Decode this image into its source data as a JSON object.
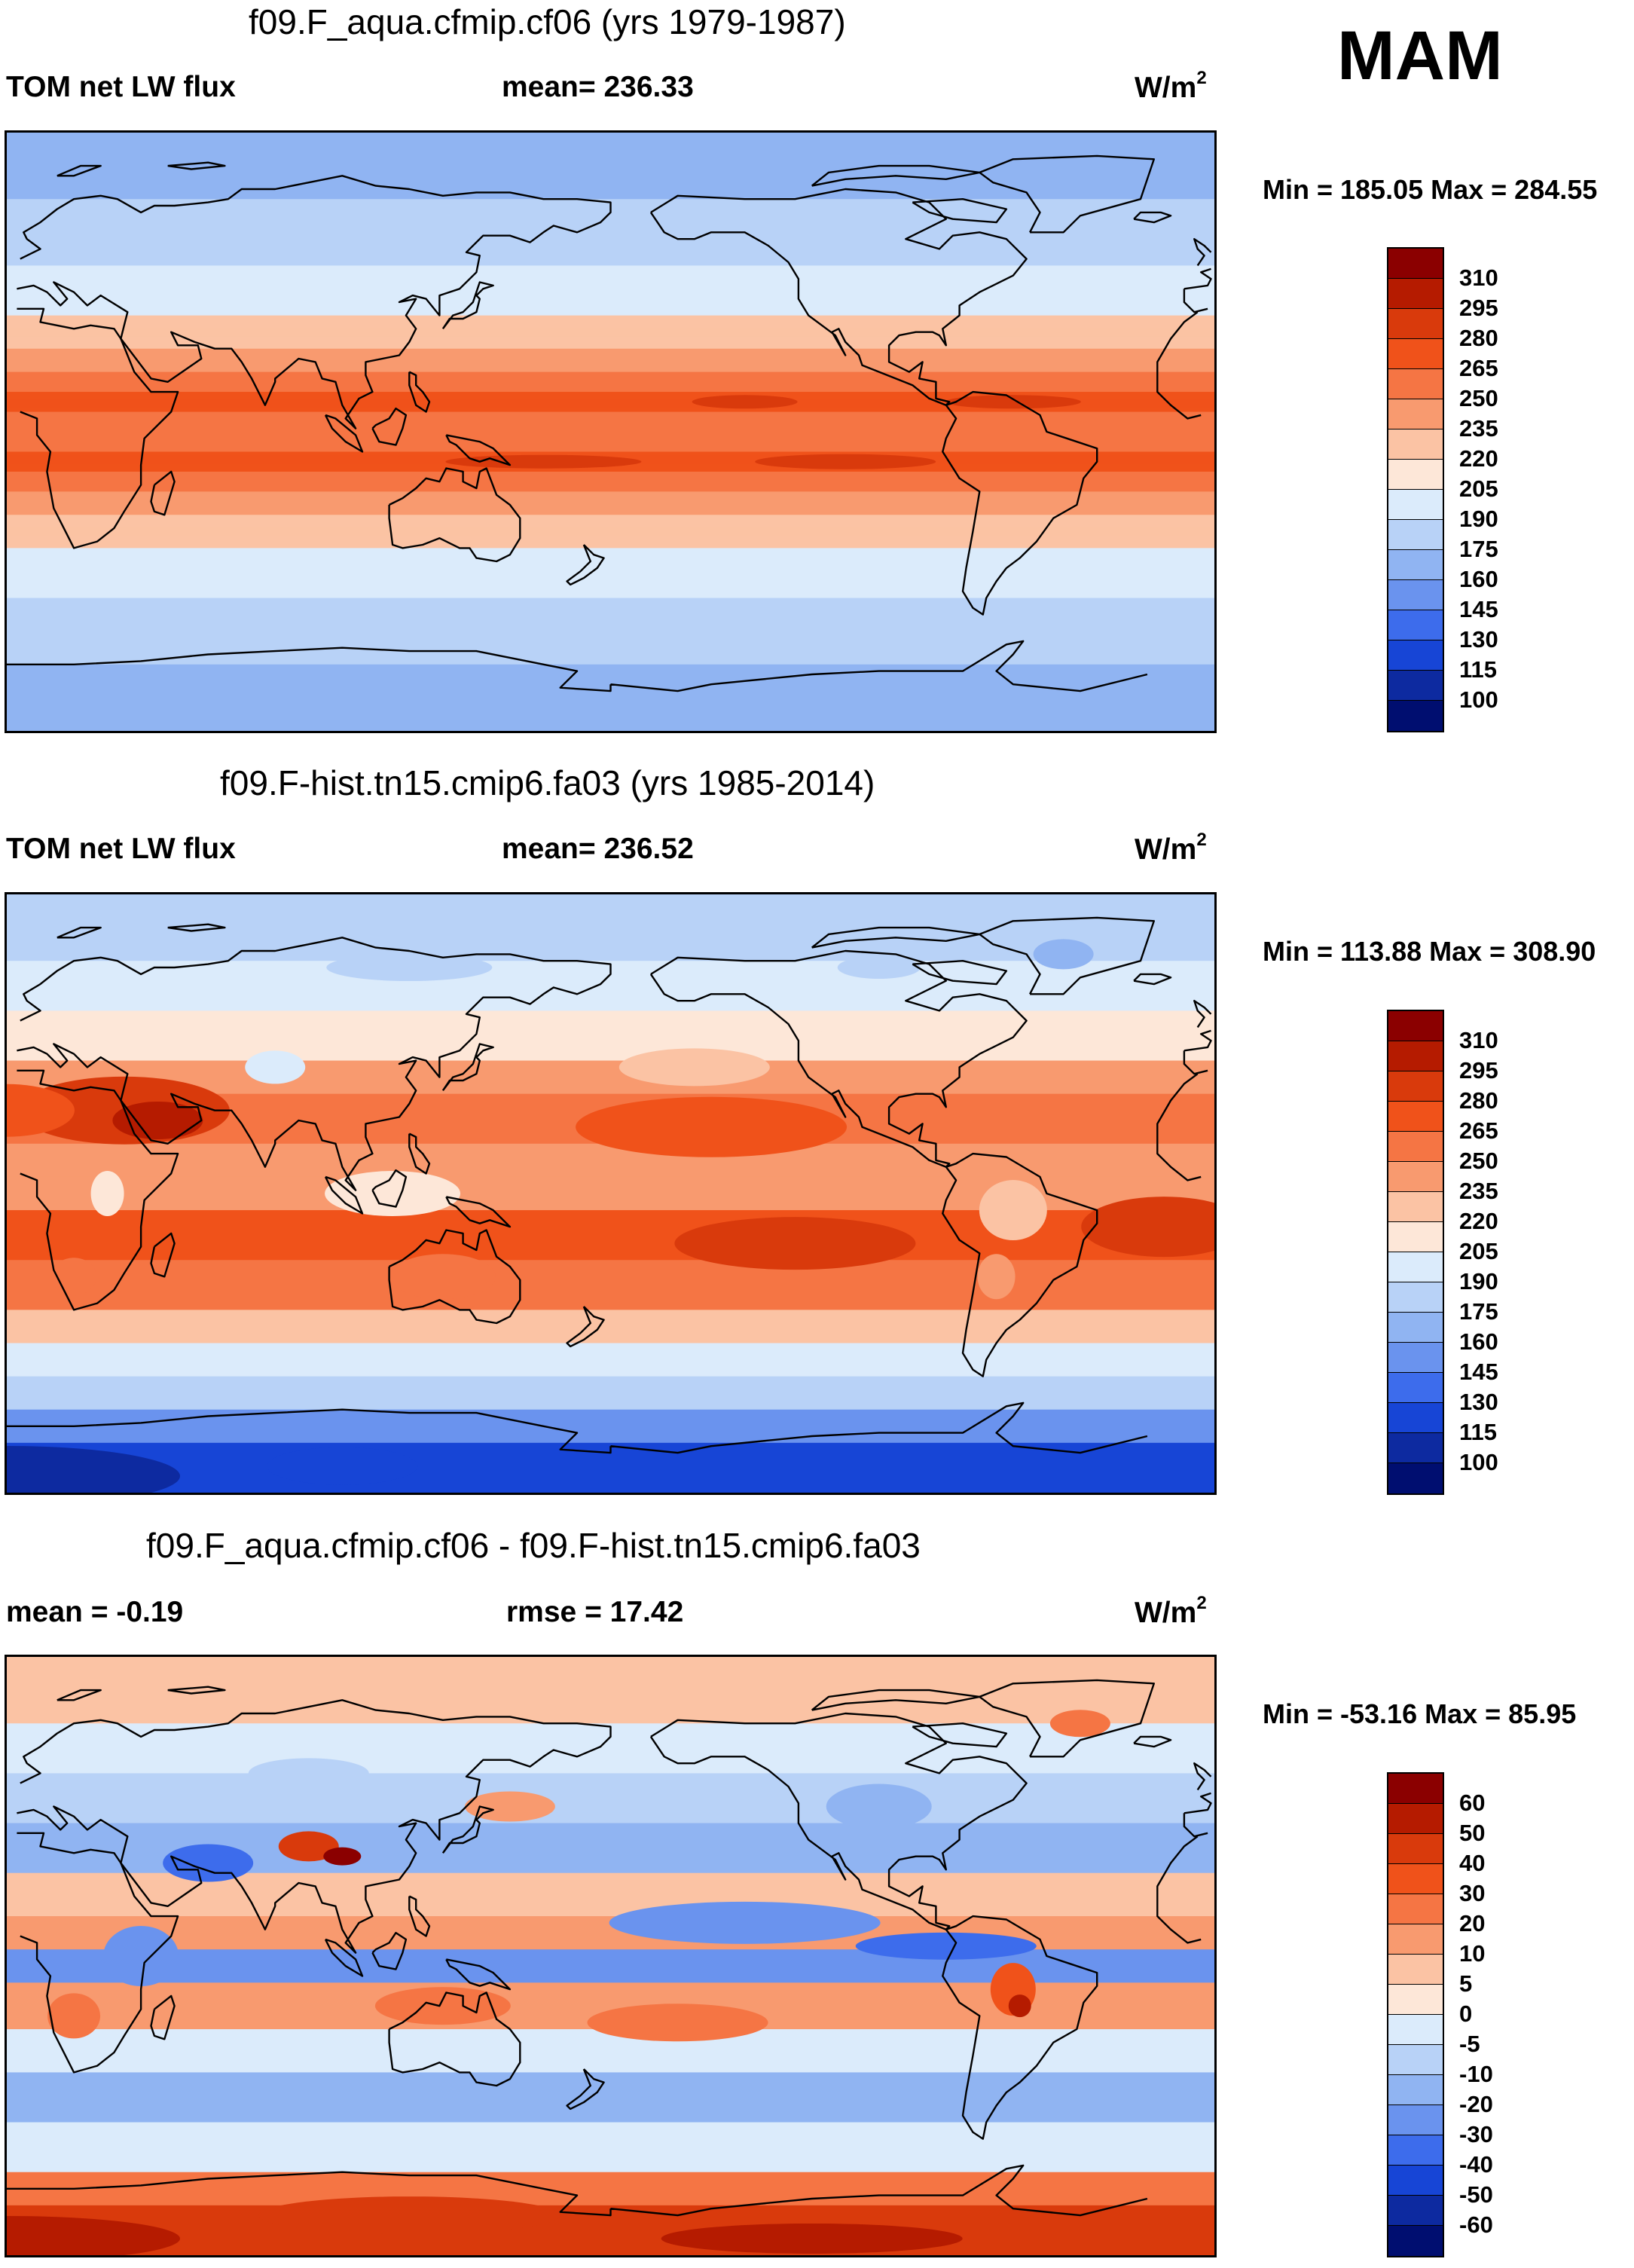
{
  "season": "MAM",
  "panels": [
    {
      "title": "f09.F_aqua.cfmip.cf06 (yrs 1979-1987)",
      "left_label": "TOM net LW flux",
      "center_label": "mean= 236.33",
      "units_base": "W/m",
      "units_exp": "2",
      "minmax": "Min = 185.05 Max = 284.55",
      "colorbar": {
        "labels": [
          "310",
          "295",
          "280",
          "265",
          "250",
          "235",
          "220",
          "205",
          "190",
          "175",
          "160",
          "145",
          "130",
          "115",
          "100"
        ],
        "colors": [
          "#8b0000",
          "#b51b00",
          "#d93a0c",
          "#f0521a",
          "#f57544",
          "#f89a6f",
          "#fbc3a4",
          "#fde7d8",
          "#dbebfb",
          "#b8d2f7",
          "#90b4f2",
          "#6a93ee",
          "#3d6cec",
          "#1745d6",
          "#0d2aa0",
          "#000e70"
        ]
      },
      "map": {
        "field": "aqua",
        "latitude_bands_N_to_S": [
          {
            "lat_north": 90,
            "lat_south": 70,
            "value": 172
          },
          {
            "lat_north": 70,
            "lat_south": 50,
            "value": 182
          },
          {
            "lat_north": 50,
            "lat_south": 35,
            "value": 200
          },
          {
            "lat_north": 35,
            "lat_south": 25,
            "value": 225
          },
          {
            "lat_north": 25,
            "lat_south": 18,
            "value": 243
          },
          {
            "lat_north": 18,
            "lat_south": 12,
            "value": 258
          },
          {
            "lat_north": 12,
            "lat_south": 6,
            "value": 270
          },
          {
            "lat_north": 6,
            "lat_south": 0,
            "value": 260
          },
          {
            "lat_north": 0,
            "lat_south": -6,
            "value": 260
          },
          {
            "lat_north": -6,
            "lat_south": -12,
            "value": 270
          },
          {
            "lat_north": -12,
            "lat_south": -18,
            "value": 258
          },
          {
            "lat_north": -18,
            "lat_south": -25,
            "value": 243
          },
          {
            "lat_north": -25,
            "lat_south": -35,
            "value": 225
          },
          {
            "lat_north": -35,
            "lat_south": -50,
            "value": 200
          },
          {
            "lat_north": -50,
            "lat_south": -70,
            "value": 182
          },
          {
            "lat_north": -70,
            "lat_south": -90,
            "value": 172
          }
        ]
      }
    },
    {
      "title": "f09.F-hist.tn15.cmip6.fa03 (yrs 1985-2014)",
      "left_label": "TOM net LW flux",
      "center_label": "mean= 236.52",
      "units_base": "W/m",
      "units_exp": "2",
      "minmax": "Min = 113.88 Max = 308.90",
      "colorbar": {
        "labels": [
          "310",
          "295",
          "280",
          "265",
          "250",
          "235",
          "220",
          "205",
          "190",
          "175",
          "160",
          "145",
          "130",
          "115",
          "100"
        ],
        "colors": [
          "#8b0000",
          "#b51b00",
          "#d93a0c",
          "#f0521a",
          "#f57544",
          "#f89a6f",
          "#fbc3a4",
          "#fde7d8",
          "#dbebfb",
          "#b8d2f7",
          "#90b4f2",
          "#6a93ee",
          "#3d6cec",
          "#1745d6",
          "#0d2aa0",
          "#000e70"
        ]
      },
      "map": {
        "field": "hist",
        "latitude_bands_N_to_S": [
          {
            "lat_north": 90,
            "lat_south": 70,
            "value": 175
          },
          {
            "lat_north": 70,
            "lat_south": 55,
            "value": 195
          },
          {
            "lat_north": 55,
            "lat_south": 40,
            "value": 212
          },
          {
            "lat_north": 40,
            "lat_south": 30,
            "value": 240
          },
          {
            "lat_north": 30,
            "lat_south": 15,
            "value": 262
          },
          {
            "lat_north": 15,
            "lat_south": 5,
            "value": 240
          },
          {
            "lat_north": 5,
            "lat_south": -5,
            "value": 235
          },
          {
            "lat_north": -5,
            "lat_south": -20,
            "value": 268
          },
          {
            "lat_north": -20,
            "lat_south": -35,
            "value": 250
          },
          {
            "lat_north": -35,
            "lat_south": -45,
            "value": 225
          },
          {
            "lat_north": -45,
            "lat_south": -55,
            "value": 198
          },
          {
            "lat_north": -55,
            "lat_south": -65,
            "value": 180
          },
          {
            "lat_north": -65,
            "lat_south": -75,
            "value": 145
          },
          {
            "lat_north": -75,
            "lat_south": -90,
            "value": 125
          }
        ]
      }
    },
    {
      "title": "f09.F_aqua.cfmip.cf06 - f09.F-hist.tn15.cmip6.fa03",
      "left_label": "mean =  -0.19",
      "center_label": "rmse =  17.42",
      "units_base": "W/m",
      "units_exp": "2",
      "minmax": "Min = -53.16 Max =  85.95",
      "colorbar": {
        "labels": [
          "60",
          "50",
          "40",
          "30",
          "20",
          "10",
          "5",
          "0",
          "-5",
          "-10",
          "-20",
          "-30",
          "-40",
          "-50",
          "-60"
        ],
        "colors": [
          "#8b0000",
          "#b51b00",
          "#d93a0c",
          "#f0521a",
          "#f57544",
          "#f89a6f",
          "#fbc3a4",
          "#fde7d8",
          "#dbebfb",
          "#b8d2f7",
          "#90b4f2",
          "#6a93ee",
          "#3d6cec",
          "#1745d6",
          "#0d2aa0",
          "#000e70"
        ]
      },
      "map": {
        "field": "difference",
        "latitude_bands_N_to_S": [
          {
            "lat_north": 90,
            "lat_south": 70,
            "value": 8
          },
          {
            "lat_north": 70,
            "lat_south": 55,
            "value": -3
          },
          {
            "lat_north": 55,
            "lat_south": 40,
            "value": -8
          },
          {
            "lat_north": 40,
            "lat_south": 25,
            "value": -12
          },
          {
            "lat_north": 25,
            "lat_south": 12,
            "value": 8
          },
          {
            "lat_north": 12,
            "lat_south": 2,
            "value": 15
          },
          {
            "lat_north": 2,
            "lat_south": -8,
            "value": -25
          },
          {
            "lat_north": -8,
            "lat_south": -22,
            "value": 18
          },
          {
            "lat_north": -22,
            "lat_south": -35,
            "value": -5
          },
          {
            "lat_north": -35,
            "lat_south": -50,
            "value": -12
          },
          {
            "lat_north": -50,
            "lat_south": -65,
            "value": -3
          },
          {
            "lat_north": -65,
            "lat_south": -75,
            "value": 25
          },
          {
            "lat_north": -75,
            "lat_south": -90,
            "value": 48
          }
        ]
      }
    }
  ]
}
